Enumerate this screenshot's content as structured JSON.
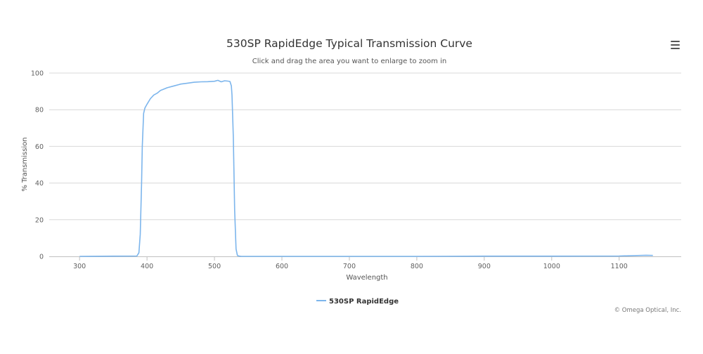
{
  "chart": {
    "title": "530SP RapidEdge Typical Transmission Curve",
    "subtitle": "Click and drag the area you want to enlarge to zoom in",
    "credits": "© Omega Optical, Inc.",
    "menu_icon": "hamburger-menu-icon"
  },
  "chart_data": {
    "type": "line",
    "title": "530SP RapidEdge Typical Transmission Curve",
    "subtitle": "Click and drag the area you want to enlarge to zoom in",
    "xlabel": "Wavelength",
    "ylabel": "% Transmission",
    "xlim": [
      255,
      1192
    ],
    "ylim": [
      0,
      100
    ],
    "xticks": [
      300,
      400,
      500,
      600,
      700,
      800,
      900,
      1000,
      1100
    ],
    "yticks": [
      0,
      20,
      40,
      60,
      80,
      100
    ],
    "grid": "horizontal",
    "legend": "bottom-center",
    "series": [
      {
        "name": "530SP RapidEdge",
        "color": "#7cb5ec",
        "x": [
          300,
          350,
          385,
          388,
          390,
          392,
          393,
          395,
          397,
          400,
          405,
          410,
          415,
          420,
          430,
          440,
          450,
          460,
          470,
          480,
          490,
          500,
          505,
          510,
          515,
          520,
          523,
          525,
          526,
          528,
          530,
          532,
          534,
          537,
          540,
          600,
          700,
          800,
          900,
          1000,
          1100,
          1140,
          1150
        ],
        "y": [
          0,
          0.1,
          0.2,
          2,
          12,
          40,
          60,
          78,
          81,
          83,
          86,
          88,
          89,
          90.5,
          92,
          93,
          94,
          94.5,
          95,
          95.2,
          95.3,
          95.5,
          96,
          95.2,
          95.8,
          95.6,
          95.4,
          93,
          88,
          65,
          25,
          4,
          0.5,
          0.1,
          0,
          0,
          0,
          0,
          0.1,
          0.1,
          0.2,
          0.6,
          0.5
        ]
      }
    ]
  }
}
